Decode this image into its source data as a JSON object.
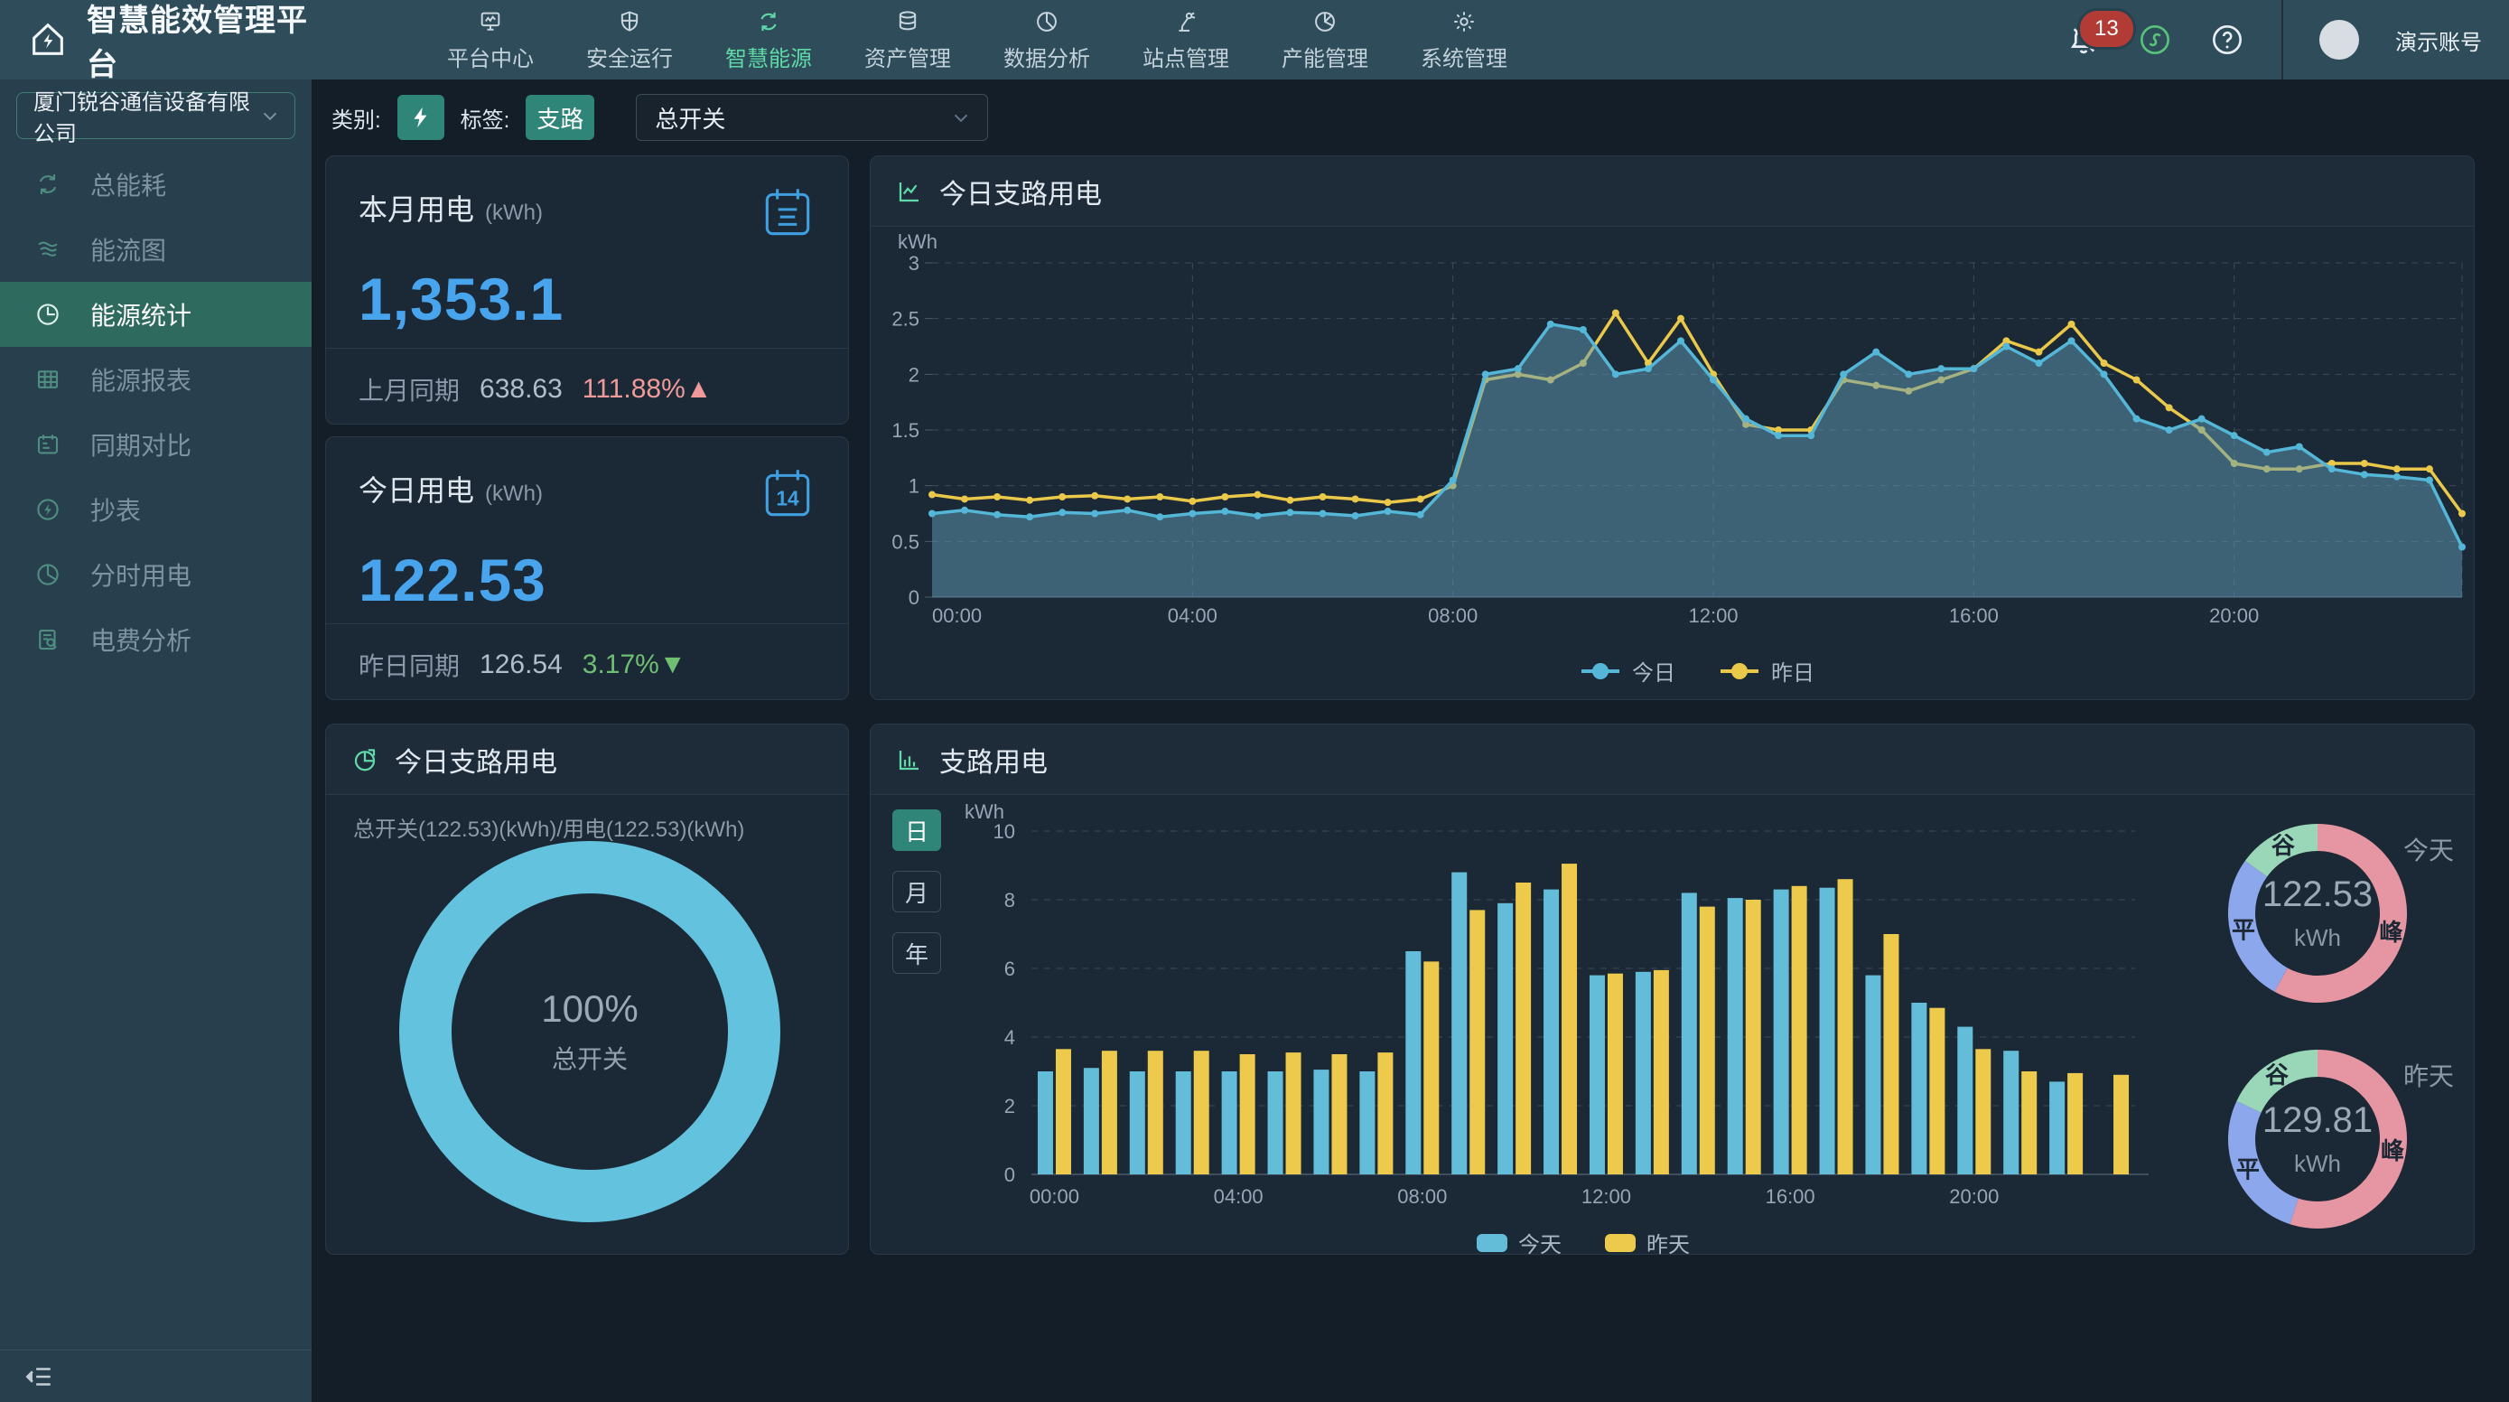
{
  "navbar": {
    "logo_title": "智慧能效管理平台",
    "menu": [
      {
        "label": "平台中心",
        "active": false
      },
      {
        "label": "安全运行",
        "active": false
      },
      {
        "label": "智慧能源",
        "active": true
      },
      {
        "label": "资产管理",
        "active": false
      },
      {
        "label": "数据分析",
        "active": false
      },
      {
        "label": "站点管理",
        "active": false
      },
      {
        "label": "产能管理",
        "active": false
      },
      {
        "label": "系统管理",
        "active": false
      }
    ],
    "notification_count": "13",
    "account_name": "演示账号"
  },
  "sidebar": {
    "company": "厦门锐谷通信设备有限公司",
    "items": [
      {
        "label": "总能耗"
      },
      {
        "label": "能流图"
      },
      {
        "label": "能源统计",
        "active": true
      },
      {
        "label": "能源报表"
      },
      {
        "label": "同期对比"
      },
      {
        "label": "抄表"
      },
      {
        "label": "分时用电"
      },
      {
        "label": "电费分析"
      }
    ]
  },
  "filterbar": {
    "category_label": "类别:",
    "tag_label": "标签:",
    "tag_value": "支路",
    "switch_value": "总开关"
  },
  "cards": {
    "month": {
      "title": "本月用电",
      "unit": "(kWh)",
      "value": "1,353.1",
      "compare_label": "上月同期",
      "compare_value": "638.63",
      "percent": "111.88%",
      "arrow": "▲"
    },
    "today": {
      "title": "今日用电",
      "unit": "(kWh)",
      "value": "122.53",
      "compare_label": "昨日同期",
      "compare_value": "126.54",
      "percent": "3.17%",
      "arrow": "▼",
      "calendar_day": "14"
    }
  },
  "panels": {
    "line": {
      "title": "今日支路用电"
    },
    "donut": {
      "title": "今日支路用电",
      "subtitle": "总开关(122.53)(kWh)/用电(122.53)(kWh)"
    },
    "bar": {
      "title": "支路用电",
      "range_buttons": [
        "日",
        "月",
        "年"
      ],
      "active_range": "日"
    }
  },
  "chart_data": [
    {
      "id": "today-line",
      "type": "line",
      "title": "今日支路用电",
      "y_unit": "kWh",
      "ylim": [
        0,
        3
      ],
      "yticks": [
        0,
        0.5,
        1,
        1.5,
        2,
        2.5,
        3
      ],
      "x_ticks": [
        "00:00",
        "04:00",
        "08:00",
        "12:00",
        "16:00",
        "20:00"
      ],
      "x_tick_idx": [
        0,
        8,
        16,
        24,
        32,
        40
      ],
      "points_per_day": 48,
      "legend_position": "bottom",
      "grid": "dashed",
      "series": [
        {
          "name": "今日",
          "color": "#54b7d8",
          "fill": "rgba(96,156,183,0.5)",
          "values": [
            0.75,
            0.78,
            0.74,
            0.72,
            0.76,
            0.75,
            0.78,
            0.72,
            0.75,
            0.77,
            0.73,
            0.76,
            0.75,
            0.73,
            0.77,
            0.74,
            1.05,
            2.0,
            2.05,
            2.45,
            2.4,
            2.0,
            2.05,
            2.3,
            1.95,
            1.6,
            1.45,
            1.45,
            2.0,
            2.2,
            2.0,
            2.05,
            2.05,
            2.25,
            2.1,
            2.3,
            2.0,
            1.6,
            1.5,
            1.6,
            1.45,
            1.3,
            1.35,
            1.15,
            1.1,
            1.08,
            1.05,
            0.45
          ]
        },
        {
          "name": "昨日",
          "color": "#e9c84a",
          "values": [
            0.92,
            0.88,
            0.9,
            0.87,
            0.9,
            0.91,
            0.88,
            0.9,
            0.86,
            0.9,
            0.92,
            0.87,
            0.9,
            0.88,
            0.85,
            0.88,
            1.0,
            1.95,
            2.0,
            1.95,
            2.1,
            2.55,
            2.1,
            2.5,
            2.0,
            1.55,
            1.5,
            1.5,
            1.95,
            1.9,
            1.85,
            1.95,
            2.05,
            2.3,
            2.2,
            2.45,
            2.1,
            1.95,
            1.7,
            1.5,
            1.2,
            1.15,
            1.15,
            1.2,
            1.2,
            1.15,
            1.15,
            0.75
          ]
        }
      ]
    },
    {
      "id": "branch-bars",
      "type": "bar",
      "title": "支路用电",
      "y_unit": "kWh",
      "ylim": [
        0,
        10
      ],
      "yticks": [
        0,
        2,
        4,
        6,
        8,
        10
      ],
      "x_ticks": [
        "00:00",
        "04:00",
        "08:00",
        "12:00",
        "16:00",
        "20:00"
      ],
      "x_tick_hours": [
        0,
        4,
        8,
        12,
        16,
        20
      ],
      "grid": "dashed",
      "legend_position": "bottom",
      "series": [
        {
          "name": "今天",
          "color": "#63bdd9",
          "values": [
            3.0,
            3.1,
            3.0,
            3.0,
            3.0,
            3.0,
            3.05,
            3.0,
            6.5,
            8.8,
            7.9,
            8.3,
            5.8,
            5.9,
            8.2,
            8.05,
            8.3,
            8.35,
            5.8,
            5.0,
            4.3,
            3.6,
            2.7,
            null
          ]
        },
        {
          "name": "昨天",
          "color": "#edca4c",
          "values": [
            3.65,
            3.6,
            3.6,
            3.6,
            3.5,
            3.55,
            3.5,
            3.55,
            6.2,
            7.7,
            8.5,
            9.05,
            5.85,
            5.95,
            7.8,
            8.0,
            8.4,
            8.6,
            7.0,
            4.85,
            3.65,
            3.0,
            2.95,
            2.9
          ]
        }
      ]
    },
    {
      "id": "total-donut",
      "type": "donut",
      "center_value": "100%",
      "center_label": "总开关",
      "segments": [
        {
          "label": "总开关",
          "value": 100,
          "color": "#63c2de"
        }
      ],
      "show_segment_labels": false
    },
    {
      "id": "tou-today",
      "type": "donut",
      "side_label": "今天",
      "center_value": "122.53",
      "center_unit": "kWh",
      "segments": [
        {
          "label": "峰",
          "value": 58,
          "color": "#e695a2"
        },
        {
          "label": "平",
          "value": 27,
          "color": "#8ca7ec"
        },
        {
          "label": "谷",
          "value": 15,
          "color": "#9ad7b8"
        }
      ],
      "show_segment_labels": true
    },
    {
      "id": "tou-yesterday",
      "type": "donut",
      "side_label": "昨天",
      "center_value": "129.81",
      "center_unit": "kWh",
      "segments": [
        {
          "label": "峰",
          "value": 55,
          "color": "#e695a2"
        },
        {
          "label": "平",
          "value": 27,
          "color": "#8ca7ec"
        },
        {
          "label": "谷",
          "value": 18,
          "color": "#9ad7b8"
        }
      ],
      "show_segment_labels": true
    }
  ]
}
